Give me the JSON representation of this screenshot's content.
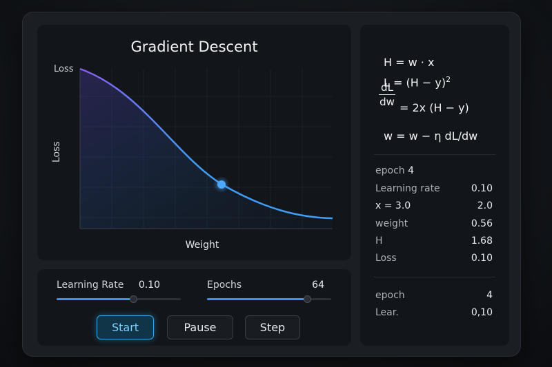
{
  "chart": {
    "title": "Gradient Descent",
    "y_top_label": "Loss",
    "y_axis_label": "Loss",
    "x_axis_label": "Weight",
    "colors": {
      "line_start": "#8a5cf0",
      "line_end": "#3f9cf5",
      "point": "#4aa8ff"
    }
  },
  "controls": {
    "learning_rate_label": "Learning Rate",
    "learning_rate_value": "0.10",
    "learning_rate_fraction": 0.62,
    "epochs_label": "Epochs",
    "epochs_value": "64",
    "epochs_fraction": 0.81,
    "start_label": "Start",
    "pause_label": "Pause",
    "step_label": "Step"
  },
  "formulas": {
    "line1": "H = w · x",
    "line2_pre": "L = (H − y)",
    "line2_exp": "2",
    "frac_num": "dL",
    "frac_den": "dw",
    "line3": "= 2x (H − y)",
    "line4": "w = w − η dL/dw"
  },
  "stats": {
    "epoch_label": "epoch",
    "epoch_value": "4",
    "rows": [
      {
        "label": "Learning rate",
        "value": "0.10"
      },
      {
        "label": "x = 3.0",
        "value": "2.0"
      },
      {
        "label": "weight",
        "value": "0.56"
      },
      {
        "label": "H",
        "value": "1.68"
      },
      {
        "label": "Loss",
        "value": "0.10"
      }
    ]
  },
  "history": {
    "rows": [
      {
        "label": "epoch",
        "value": "4"
      },
      {
        "label": "Lear.",
        "value": "0,10"
      }
    ]
  }
}
